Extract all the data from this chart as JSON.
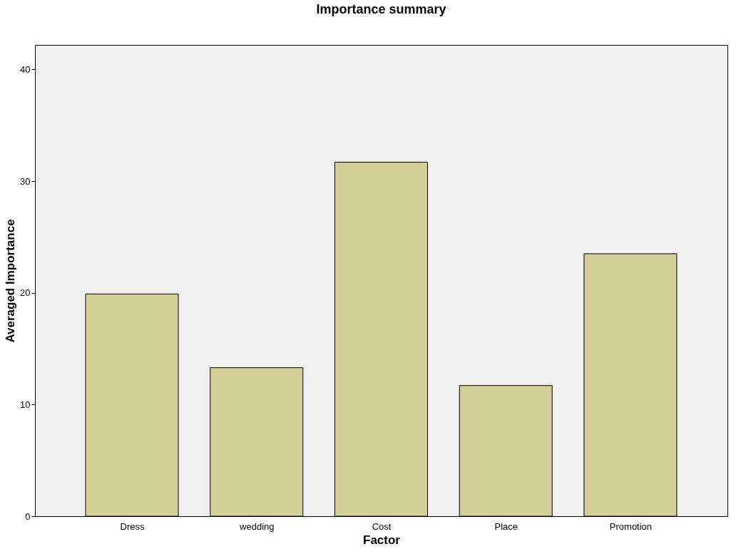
{
  "chart_data": {
    "type": "bar",
    "title": "Importance summary",
    "xlabel": "Factor",
    "ylabel": "Averaged Importance",
    "categories": [
      "Dress",
      "wedding",
      "Cost",
      "Place",
      "Promotion"
    ],
    "values": [
      19.9,
      13.3,
      31.7,
      11.7,
      23.5
    ],
    "color": "#d3cf98",
    "ylim": [
      0,
      42.2
    ],
    "yticks": [
      0,
      10,
      20,
      30,
      40
    ],
    "grid": false
  }
}
